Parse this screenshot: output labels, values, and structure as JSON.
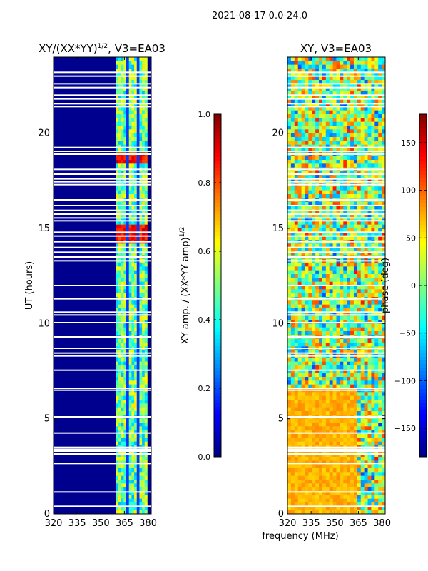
{
  "figure": {
    "suptitle": "2021-08-17 0.0-24.0",
    "xlabel_shared": "frequency (MHz)"
  },
  "colors": {
    "jet": [
      "#00007f",
      "#0000ff",
      "#007fff",
      "#00ffff",
      "#7fff7f",
      "#ffff00",
      "#ff7f00",
      "#ff0000",
      "#7f0000"
    ],
    "flag": "#ffffff",
    "axis": "#000000"
  },
  "chart_data": [
    {
      "type": "heatmap",
      "title_base": "XY/(XX*YY)",
      "title_sup": "1/2",
      "title_rest": ", V3=EA03",
      "xlabel": "",
      "ylabel": "UT (hours)",
      "xlim": [
        320,
        382
      ],
      "ylim": [
        0,
        24
      ],
      "xticks": [
        320,
        335,
        350,
        365,
        380
      ],
      "yticks": [
        0,
        5,
        10,
        15,
        20
      ],
      "band_edges_mhz": [
        359.5,
        366.5,
        367.8,
        373.0,
        374.2,
        379.5
      ],
      "colorbar": {
        "label_base": "XY amp. / (XX*YY amp)",
        "label_sup": "1/2",
        "range": [
          0.0,
          1.0
        ],
        "ticks": [
          0.0,
          0.2,
          0.4,
          0.6,
          0.8,
          1.0
        ],
        "tick_labels": [
          "0.0",
          "0.2",
          "0.4",
          "0.6",
          "0.8",
          "1.0"
        ]
      },
      "flagged_ut_hours": [
        0.4,
        1.15,
        2.65,
        3.15,
        3.3,
        3.4,
        3.5,
        4.25,
        5.1,
        6.5,
        6.6,
        7.55,
        8.3,
        8.45,
        8.7,
        9.3,
        10.05,
        10.45,
        10.6,
        11.3,
        12.0,
        13.3,
        13.5,
        13.75,
        14.0,
        14.3,
        14.6,
        14.8,
        15.4,
        15.55,
        15.75,
        15.95,
        16.2,
        16.5,
        17.3,
        17.45,
        17.6,
        17.85,
        18.1,
        18.9,
        19.05,
        19.25,
        21.4,
        21.55,
        21.8,
        22.0,
        22.4,
        22.6,
        23.0,
        23.2
      ]
    },
    {
      "type": "heatmap",
      "title": "XY, V3=EA03",
      "xlabel": "",
      "ylabel": "",
      "xlim": [
        320,
        382
      ],
      "ylim": [
        0,
        24
      ],
      "xticks": [
        320,
        335,
        350,
        365,
        380
      ],
      "yticks": [
        0,
        5,
        10,
        15,
        20
      ],
      "colorbar": {
        "label": "phase (deg)",
        "range": [
          -180,
          180
        ],
        "ticks": [
          -150,
          -100,
          -50,
          0,
          50,
          100,
          150
        ],
        "tick_labels": [
          "−150",
          "−100",
          "−50",
          "0",
          "50",
          "100",
          "150"
        ]
      },
      "coherent_period_ut": [
        0.0,
        6.5
      ],
      "flagged_ut_hours": [
        0.4,
        1.15,
        2.65,
        3.15,
        3.3,
        3.4,
        3.5,
        4.25,
        5.1,
        6.5,
        6.6,
        7.55,
        8.3,
        8.45,
        8.7,
        9.3,
        10.05,
        10.45,
        10.6,
        11.3,
        12.0,
        13.3,
        13.5,
        13.75,
        14.0,
        14.3,
        14.6,
        14.8,
        15.4,
        15.55,
        15.75,
        15.95,
        16.2,
        16.5,
        17.3,
        17.45,
        17.6,
        17.85,
        18.1,
        18.9,
        19.05,
        19.25,
        21.4,
        21.55,
        21.8,
        22.0,
        22.4,
        22.6,
        23.0,
        23.2
      ]
    }
  ]
}
